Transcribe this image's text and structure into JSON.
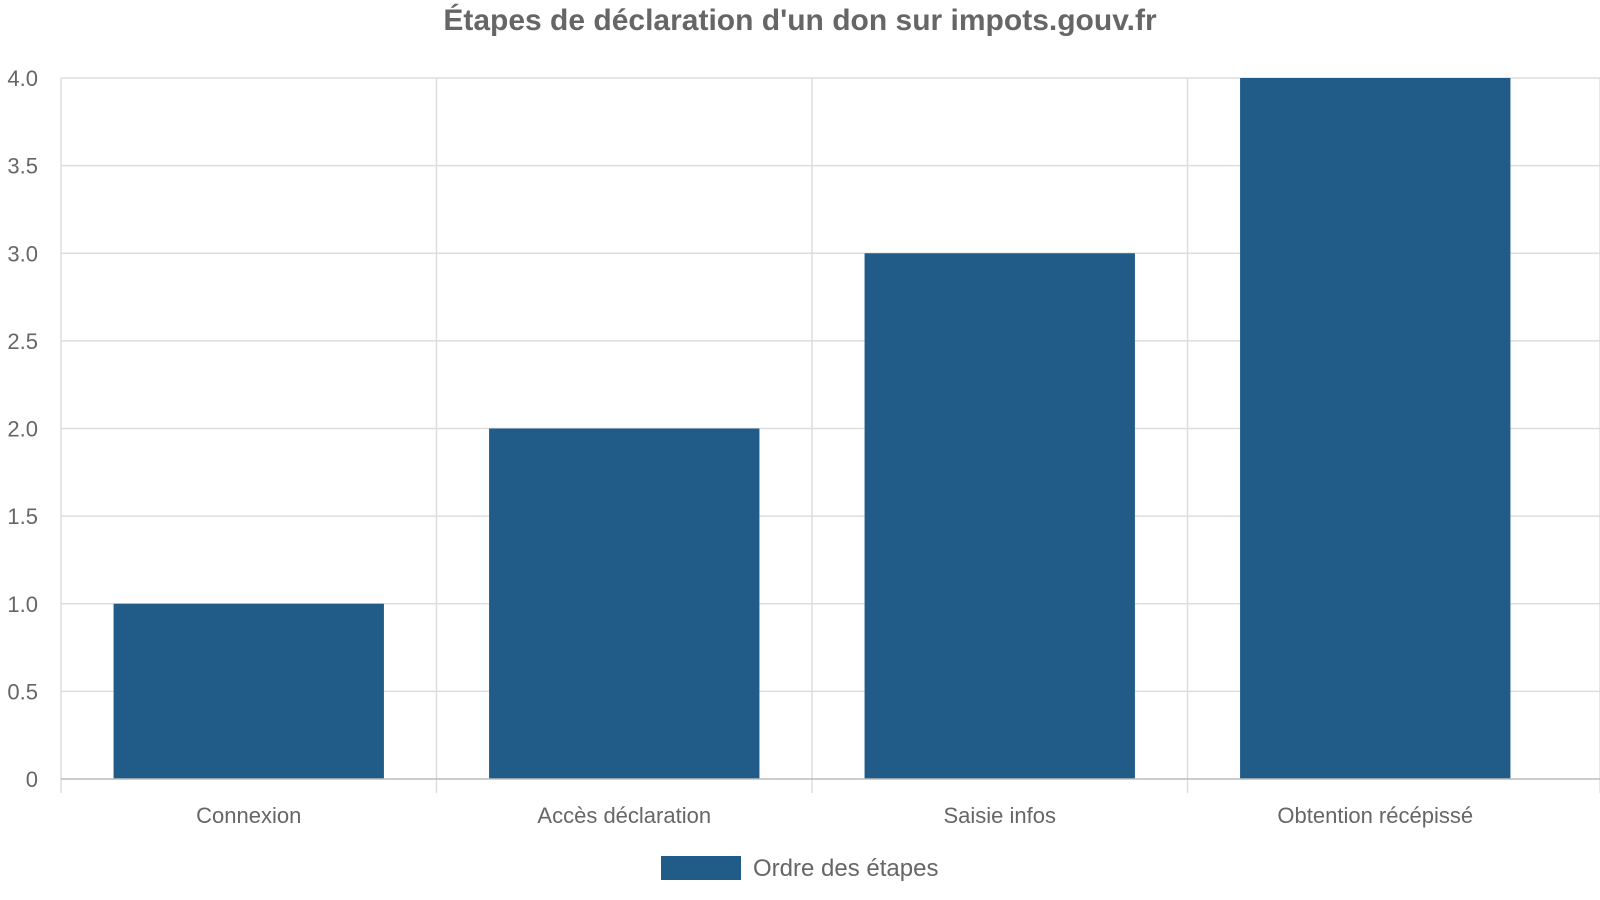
{
  "chart_data": {
    "type": "bar",
    "title": "Étapes de déclaration d'un don sur impots.gouv.fr",
    "categories": [
      "Connexion",
      "Accès déclaration",
      "Saisie infos",
      "Obtention récépissé"
    ],
    "series": [
      {
        "name": "Ordre des étapes",
        "values": [
          1,
          2,
          3,
          4
        ],
        "color": "#205c87"
      }
    ],
    "xlabel": "",
    "ylabel": "",
    "ylim": [
      0,
      4
    ],
    "yticks": [
      "0",
      "0.5",
      "1.0",
      "1.5",
      "2.0",
      "2.5",
      "3.0",
      "3.5",
      "4.0"
    ],
    "grid": true,
    "legend_position": "bottom-center"
  }
}
